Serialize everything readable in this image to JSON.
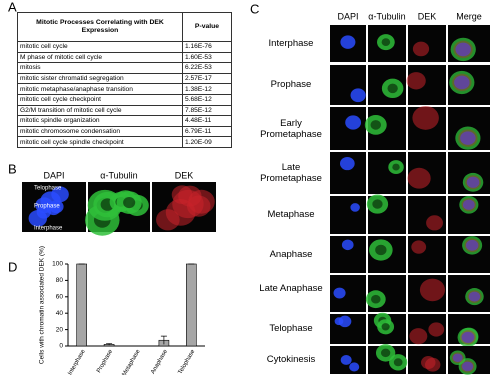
{
  "panels": {
    "a": {
      "label": "A",
      "table": {
        "header": [
          "Mitotic Processes Correlating with DEK Expression",
          "P-value"
        ],
        "rows": [
          [
            "mitotic cell cycle",
            "1.16E-76"
          ],
          [
            "M phase of mitotic cell cycle",
            "1.60E-53"
          ],
          [
            "mitosis",
            "6.22E-53"
          ],
          [
            "mitotic sister chromatid segregation",
            "2.57E-17"
          ],
          [
            "mitotic metaphase/anaphase transition",
            "1.38E-12"
          ],
          [
            "mitotic cell cycle checkpoint",
            "5.68E-12"
          ],
          [
            "G2/M transition of mitotic cell cycle",
            "7.85E-12"
          ],
          [
            "mitotic spindle organization",
            "4.48E-11"
          ],
          [
            "mitotic chromosome condensation",
            "6.79E-11"
          ],
          [
            "mitotic cell cycle spindle checkpoint",
            "1.20E-09"
          ]
        ]
      }
    },
    "b": {
      "label": "B",
      "columns": [
        "DAPI",
        "α-Tubulin",
        "DEK"
      ],
      "annotations": [
        "Telophase",
        "Prophase",
        "Interphase"
      ]
    },
    "c": {
      "label": "C",
      "columns": [
        "DAPI",
        "α-Tubulin",
        "DEK",
        "Merge"
      ],
      "rows": [
        "Interphase",
        "Prophase",
        "Early Prometaphase",
        "Late Prometaphase",
        "Metaphase",
        "Anaphase",
        "Late Anaphase",
        "Telophase",
        "Cytokinesis"
      ]
    },
    "d": {
      "label": "D",
      "chart_data": {
        "type": "bar",
        "ylabel": "Cells with chromatin associated DEK (%)",
        "categories": [
          "Interphase",
          "Prophase",
          "Metaphase",
          "Anaphase",
          "Telophase"
        ],
        "values": [
          100,
          2,
          0,
          7,
          100
        ],
        "errors": [
          0,
          1,
          0,
          5,
          0
        ],
        "color": "#a6a6a6",
        "ylim": [
          0,
          100
        ],
        "yticks": [
          0,
          20,
          40,
          60,
          80,
          100
        ]
      }
    }
  }
}
